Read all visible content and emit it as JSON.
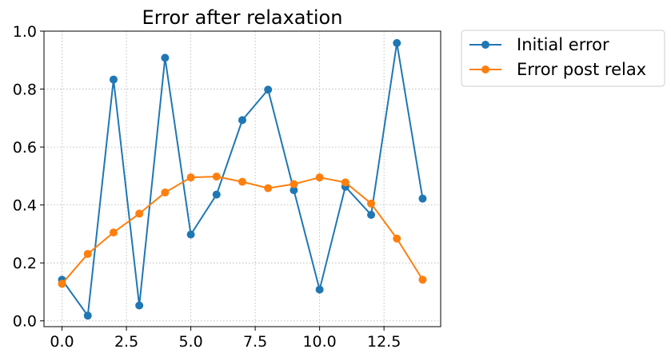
{
  "chart_data": {
    "type": "line",
    "title": "Error after relaxation",
    "xlabel": "",
    "ylabel": "",
    "xlim": [
      -0.7,
      14.7
    ],
    "ylim": [
      -0.02,
      1.0
    ],
    "x_ticks": [
      0.0,
      2.5,
      5.0,
      7.5,
      10.0,
      12.5
    ],
    "x_tick_labels": [
      "0.0",
      "2.5",
      "5.0",
      "7.5",
      "10.0",
      "12.5"
    ],
    "y_ticks": [
      0.0,
      0.2,
      0.4,
      0.6,
      0.8,
      1.0
    ],
    "y_tick_labels": [
      "0.0",
      "0.2",
      "0.4",
      "0.6",
      "0.8",
      "1.0"
    ],
    "grid": true,
    "legend_position": "outside-top-right",
    "x": [
      0,
      1,
      2,
      3,
      4,
      5,
      6,
      7,
      8,
      9,
      10,
      11,
      12,
      13,
      14
    ],
    "series": [
      {
        "name": "Initial error",
        "color": "#1f77b4",
        "values": [
          0.142,
          0.018,
          0.833,
          0.053,
          0.908,
          0.298,
          0.436,
          0.693,
          0.798,
          0.451,
          0.108,
          0.463,
          0.366,
          0.959,
          0.422
        ]
      },
      {
        "name": "Error post relax",
        "color": "#ff7f0e",
        "values": [
          0.128,
          0.231,
          0.305,
          0.37,
          0.443,
          0.495,
          0.498,
          0.48,
          0.458,
          0.472,
          0.495,
          0.478,
          0.405,
          0.284,
          0.142
        ]
      }
    ]
  }
}
